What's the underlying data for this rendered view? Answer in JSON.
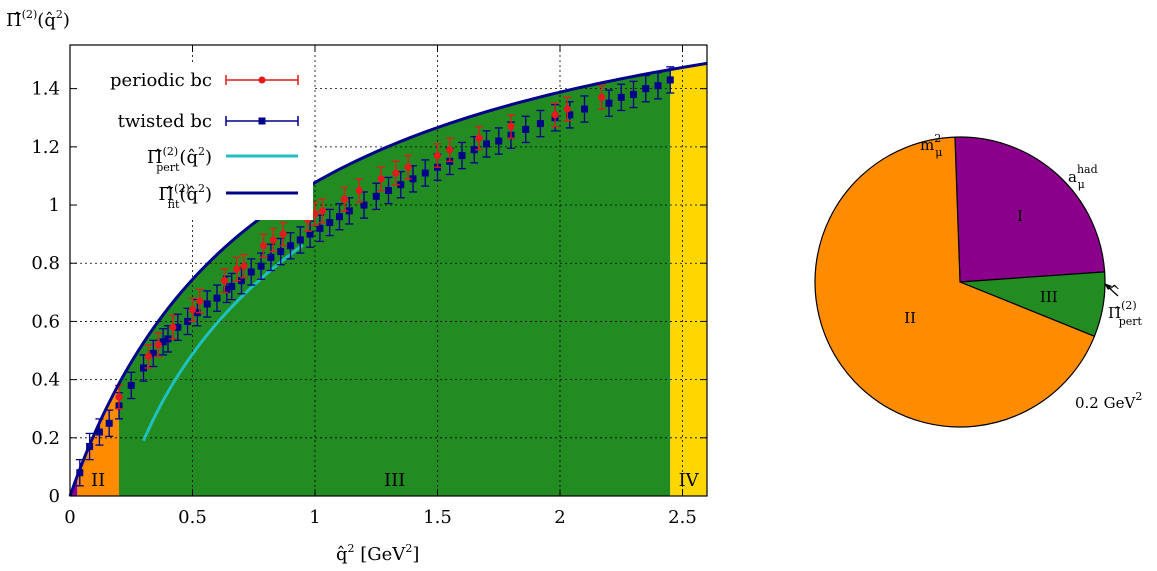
{
  "chart_data": [
    {
      "type": "scatter",
      "ylabel": "Π̂",
      "ylabel_sup": "(2)",
      "ylabel_arg": "(q̂",
      "ylabel_arg_sup": "2",
      "ylabel_close": ")",
      "xlabel": "q̂",
      "xlabel_sup": "2",
      "xlabel_unit": " [GeV",
      "xlabel_unit_sup": "2",
      "xlabel_unit_close": "]",
      "xlim": [
        0,
        2.6
      ],
      "ylim": [
        0,
        1.55
      ],
      "xticks": [
        0,
        0.5,
        1,
        1.5,
        2,
        2.5
      ],
      "xtick_labels": [
        "0",
        "0.5",
        "1",
        "1.5",
        "2",
        "2.5"
      ],
      "yticks": [
        0,
        0.2,
        0.4,
        0.6,
        0.8,
        1,
        1.2,
        1.4
      ],
      "ytick_labels": [
        "0",
        "0.2",
        "0.4",
        "0.6",
        "0.8",
        "1",
        "1.2",
        "1.4"
      ],
      "grid": true,
      "legend_position": "top-left",
      "regions": [
        {
          "label": "I",
          "x0": 0,
          "x1": 0.03,
          "color": "#8b008b"
        },
        {
          "label": "II",
          "x0": 0.03,
          "x1": 0.2,
          "color": "#ff8c00"
        },
        {
          "label": "III",
          "x0": 0.2,
          "x1": 2.45,
          "color": "#228b22"
        },
        {
          "label": "IV",
          "x0": 2.45,
          "x1": 2.6,
          "color": "#ffd700"
        }
      ],
      "fit_params": {
        "a": 1.0,
        "b": 0.81
      },
      "pert_params": {
        "a": 0.583,
        "b": 0.388,
        "x_start": 0.3,
        "x_end": 0.95
      },
      "series": [
        {
          "name": "periodic bc",
          "style": "circle-errorbars",
          "color": "#e41a1c",
          "x": [
            0.2,
            0.32,
            0.36,
            0.42,
            0.5,
            0.53,
            0.63,
            0.68,
            0.71,
            0.79,
            0.83,
            0.87,
            0.97,
            1.0,
            1.03,
            1.12,
            1.18,
            1.27,
            1.33,
            1.38,
            1.5,
            1.55,
            1.67,
            1.8,
            1.98,
            2.03,
            2.17
          ],
          "y": [
            0.34,
            0.48,
            0.52,
            0.58,
            0.64,
            0.67,
            0.74,
            0.78,
            0.79,
            0.86,
            0.88,
            0.9,
            0.95,
            0.97,
            0.98,
            1.02,
            1.05,
            1.09,
            1.11,
            1.13,
            1.17,
            1.19,
            1.23,
            1.27,
            1.31,
            1.33,
            1.37
          ],
          "err": 0.04
        },
        {
          "name": "twisted bc",
          "style": "square-errorbars",
          "color": "#00008b",
          "x": [
            0.04,
            0.08,
            0.12,
            0.16,
            0.2,
            0.25,
            0.3,
            0.34,
            0.38,
            0.4,
            0.44,
            0.48,
            0.52,
            0.56,
            0.6,
            0.64,
            0.66,
            0.7,
            0.74,
            0.78,
            0.82,
            0.86,
            0.9,
            0.94,
            0.98,
            1.02,
            1.06,
            1.1,
            1.14,
            1.2,
            1.25,
            1.3,
            1.35,
            1.4,
            1.45,
            1.5,
            1.55,
            1.6,
            1.65,
            1.7,
            1.75,
            1.8,
            1.86,
            1.92,
            1.98,
            2.04,
            2.1,
            2.2,
            2.25,
            2.3,
            2.35,
            2.4,
            2.45
          ],
          "y": [
            0.08,
            0.17,
            0.22,
            0.25,
            0.31,
            0.38,
            0.44,
            0.49,
            0.53,
            0.54,
            0.58,
            0.6,
            0.63,
            0.66,
            0.68,
            0.71,
            0.72,
            0.74,
            0.77,
            0.79,
            0.82,
            0.84,
            0.86,
            0.88,
            0.9,
            0.92,
            0.94,
            0.96,
            0.98,
            1.0,
            1.03,
            1.05,
            1.07,
            1.09,
            1.11,
            1.13,
            1.15,
            1.17,
            1.19,
            1.21,
            1.22,
            1.24,
            1.26,
            1.28,
            1.3,
            1.31,
            1.33,
            1.35,
            1.37,
            1.38,
            1.4,
            1.41,
            1.43
          ],
          "err": 0.045
        },
        {
          "name": "Π̂",
          "name_sup": "(2)",
          "name_sub": "pert",
          "name_arg": "(q̂",
          "name_arg_sup": "2",
          "name_close": ")",
          "style": "line",
          "color": "#20c0c0"
        },
        {
          "name": "Π̂",
          "name_sup": "(2)",
          "name_sub": "fit",
          "name_arg": "(q̂",
          "name_arg_sup": "2",
          "name_close": ")",
          "style": "line",
          "color": "#00008b"
        }
      ]
    },
    {
      "type": "pie",
      "slices": [
        {
          "label": "I",
          "start_deg": 4,
          "end_deg": 92,
          "color": "#8b008b"
        },
        {
          "label": "III",
          "start_deg": 338,
          "end_deg": 4,
          "color": "#228b22"
        },
        {
          "label": "II",
          "start_deg": 92,
          "end_deg": 338,
          "color": "#ff8c00"
        }
      ],
      "annotations": {
        "top": {
          "base": "m",
          "sup": "2",
          "sub": "μ"
        },
        "top_right": {
          "base": "a",
          "sup": "had",
          "sub": "μ"
        },
        "right": {
          "base": "Π̂",
          "sup": "(2)",
          "sub": "pert",
          "hat": "^"
        },
        "bottom_right": {
          "text": "0.2 GeV",
          "sup": "2"
        }
      }
    }
  ]
}
